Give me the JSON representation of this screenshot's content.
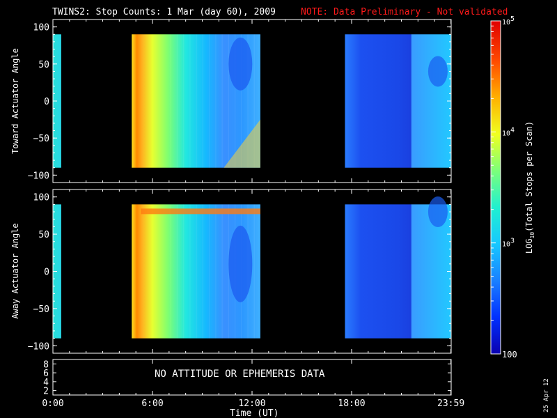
{
  "header": {
    "title": "TWINS2: Stop Counts:  1 Mar (day  60), 2009",
    "note": "NOTE: Data Preliminary - Not validated",
    "note_color": "#ff1a1a"
  },
  "side_stamp": "25 Apr 12",
  "chart_data": [
    {
      "type": "heatmap",
      "panel": "toward",
      "ylabel": "Toward Actuator Angle",
      "ylim": [
        -110,
        110
      ],
      "yticks": [
        100,
        50,
        0,
        -50,
        -100
      ],
      "xlim_hours": [
        0,
        24
      ],
      "data_ylim": [
        -90,
        90
      ],
      "segments": [
        {
          "start_hour": 0.0,
          "end_hour": 0.5
        },
        {
          "start_hour": 4.75,
          "end_hour": 12.5
        },
        {
          "start_hour": 17.6,
          "end_hour": 24.0
        }
      ]
    },
    {
      "type": "heatmap",
      "panel": "away",
      "ylabel": "Away Actuator Angle",
      "ylim": [
        -110,
        110
      ],
      "yticks": [
        100,
        50,
        0,
        -50,
        -100
      ],
      "xlim_hours": [
        0,
        24
      ],
      "data_ylim": [
        -90,
        90
      ],
      "segments": [
        {
          "start_hour": 0.0,
          "end_hour": 0.5
        },
        {
          "start_hour": 4.75,
          "end_hour": 12.5
        },
        {
          "start_hour": 17.6,
          "end_hour": 24.0
        }
      ]
    },
    {
      "type": "line",
      "panel": "ephemeris",
      "yticks": [
        "8",
        "6",
        "4",
        "2"
      ],
      "ylim": [
        1,
        9
      ],
      "message": "NO ATTITUDE OR EPHEMERIS DATA"
    }
  ],
  "x_axis": {
    "label": "Time (UT)",
    "ticks": [
      {
        "hour": 0,
        "label": "0:00"
      },
      {
        "hour": 6,
        "label": "6:00"
      },
      {
        "hour": 12,
        "label": "12:00"
      },
      {
        "hour": 18,
        "label": "18:00"
      },
      {
        "hour": 23.983,
        "label": "23:59"
      }
    ]
  },
  "colorbar": {
    "label_parts": [
      "LOG",
      "10",
      "(Total Stops per Scan)"
    ],
    "scale": "log",
    "range": [
      100,
      100000
    ],
    "ticks": [
      {
        "value": 100000,
        "base": "10",
        "exp": "5"
      },
      {
        "value": 10000,
        "base": "10",
        "exp": "4"
      },
      {
        "value": 1000,
        "base": "10",
        "exp": "3"
      },
      {
        "value": 100,
        "base": "100",
        "exp": ""
      }
    ],
    "colors": [
      "#0a00b0",
      "#0030ff",
      "#1a80ff",
      "#16c8ff",
      "#20f0d0",
      "#7cff7a",
      "#f0ff20",
      "#ffb000",
      "#ff4a00",
      "#e00000"
    ]
  }
}
